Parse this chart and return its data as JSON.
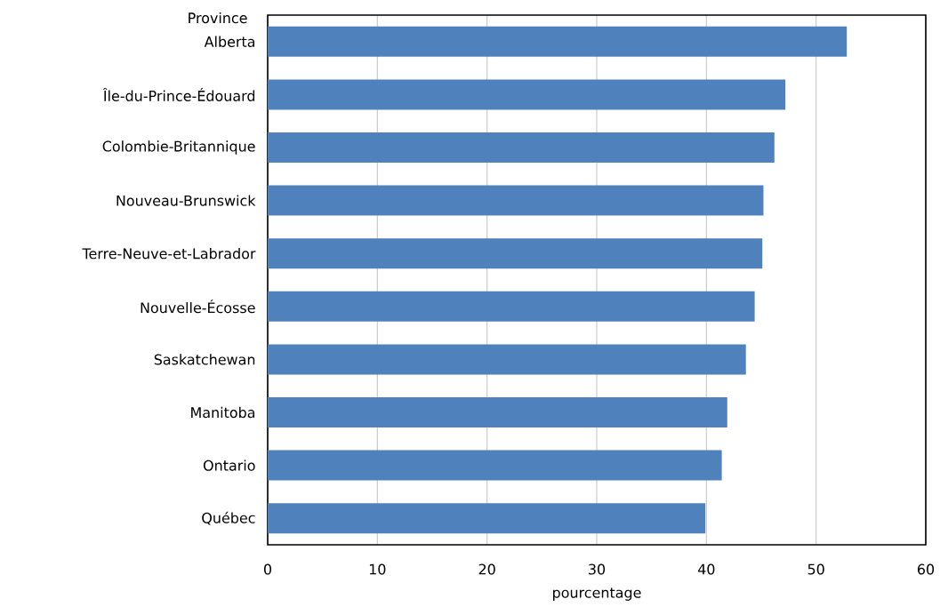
{
  "chart_data": {
    "type": "bar",
    "orientation": "horizontal",
    "ylabel": "Province",
    "xlabel": "pourcentage",
    "categories": [
      "Alberta",
      "Île-du-Prince-Édouard",
      "Colombie-Britannique",
      "Nouveau-Brunswick",
      "Terre-Neuve-et-Labrador",
      "Nouvelle-Écosse",
      "Saskatchewan",
      "Manitoba",
      "Ontario",
      "Québec"
    ],
    "values": [
      52.8,
      47.2,
      46.2,
      45.2,
      45.1,
      44.4,
      43.6,
      41.9,
      41.4,
      39.9
    ],
    "color": "#4f81bd",
    "xlim": [
      0,
      60
    ],
    "xticks": [
      0,
      10,
      20,
      30,
      40,
      50,
      60
    ],
    "grid": "x"
  }
}
